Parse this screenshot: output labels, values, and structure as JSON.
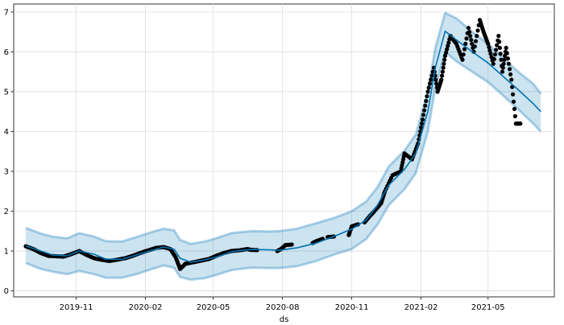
{
  "chart_data": {
    "type": "line",
    "title": "",
    "xlabel": "ds",
    "ylabel": "",
    "x_range": [
      "2019-08-10",
      "2021-07-28"
    ],
    "ylim": [
      -0.15,
      7.2
    ],
    "grid": true,
    "x_ticks": [
      {
        "date": "2019-11-01",
        "label": "2019-11"
      },
      {
        "date": "2020-02-01",
        "label": "2020-02"
      },
      {
        "date": "2020-05-01",
        "label": "2020-05"
      },
      {
        "date": "2020-08-01",
        "label": "2020-08"
      },
      {
        "date": "2020-11-01",
        "label": "2020-11"
      },
      {
        "date": "2021-02-01",
        "label": "2021-02"
      },
      {
        "date": "2021-05-01",
        "label": "2021-05"
      }
    ],
    "y_ticks": [
      0,
      1,
      2,
      3,
      4,
      5,
      6,
      7
    ],
    "colors": {
      "forecast_line": "#0072B2",
      "uncertainty_band": "#0072B2",
      "observed_points": "#000000",
      "grid": "#dddddd"
    },
    "series": [
      {
        "kind": "forecast",
        "x": [
          "2019-08-26",
          "2019-09-15",
          "2019-10-01",
          "2019-10-20",
          "2019-11-05",
          "2019-11-25",
          "2019-12-10",
          "2020-01-01",
          "2020-01-20",
          "2020-02-10",
          "2020-02-25",
          "2020-03-10",
          "2020-03-18",
          "2020-04-01",
          "2020-04-20",
          "2020-05-05",
          "2020-05-25",
          "2020-06-10",
          "2020-06-22",
          "2020-07-15",
          "2020-07-28",
          "2020-08-20",
          "2020-09-15",
          "2020-10-10",
          "2020-11-01",
          "2020-11-20",
          "2020-12-05",
          "2020-12-20",
          "2021-01-10",
          "2021-01-25",
          "2021-02-10",
          "2021-02-20",
          "2021-03-05",
          "2021-03-20",
          "2021-04-10",
          "2021-05-01",
          "2021-05-20",
          "2021-06-10",
          "2021-06-30",
          "2021-07-10"
        ],
        "yhat": [
          1.13,
          1.0,
          0.9,
          0.88,
          1.0,
          0.92,
          0.8,
          0.79,
          0.9,
          1.02,
          1.1,
          1.05,
          0.82,
          0.72,
          0.78,
          0.85,
          0.98,
          1.02,
          1.04,
          1.03,
          1.02,
          1.08,
          1.2,
          1.38,
          1.55,
          1.78,
          2.15,
          2.65,
          3.05,
          3.45,
          4.5,
          5.6,
          6.52,
          6.3,
          6.0,
          5.72,
          5.4,
          5.05,
          4.7,
          4.5
        ],
        "yhat_lower": [
          0.7,
          0.55,
          0.48,
          0.42,
          0.5,
          0.42,
          0.33,
          0.33,
          0.42,
          0.55,
          0.64,
          0.58,
          0.35,
          0.28,
          0.32,
          0.4,
          0.52,
          0.56,
          0.58,
          0.57,
          0.57,
          0.62,
          0.75,
          0.92,
          1.05,
          1.3,
          1.66,
          2.15,
          2.55,
          2.95,
          4.0,
          5.1,
          6.0,
          5.76,
          5.5,
          5.24,
          4.92,
          4.56,
          4.2,
          4.0
        ],
        "yhat_upper": [
          1.58,
          1.44,
          1.36,
          1.32,
          1.45,
          1.36,
          1.25,
          1.24,
          1.35,
          1.48,
          1.56,
          1.52,
          1.28,
          1.18,
          1.24,
          1.32,
          1.45,
          1.48,
          1.5,
          1.49,
          1.5,
          1.56,
          1.7,
          1.84,
          2.0,
          2.24,
          2.6,
          3.12,
          3.52,
          3.92,
          5.0,
          6.1,
          6.98,
          6.84,
          6.5,
          6.2,
          5.86,
          5.5,
          5.2,
          4.95
        ]
      },
      {
        "kind": "observed",
        "x": [
          "2019-08-26",
          "2019-09-05",
          "2019-09-15",
          "2019-09-25",
          "2019-10-05",
          "2019-10-15",
          "2019-10-25",
          "2019-11-05",
          "2019-11-15",
          "2019-11-25",
          "2019-12-05",
          "2019-12-15",
          "2019-12-25",
          "2020-01-05",
          "2020-01-15",
          "2020-01-25",
          "2020-02-05",
          "2020-02-15",
          "2020-02-25",
          "2020-03-05",
          "2020-03-12",
          "2020-03-18",
          "2020-03-25",
          "2020-04-05",
          "2020-04-15",
          "2020-04-25",
          "2020-05-05",
          "2020-05-15",
          "2020-05-25",
          "2020-06-05",
          "2020-06-15",
          "2020-06-20",
          "2020-07-25",
          "2020-07-30",
          "2020-08-05",
          "2020-09-10",
          "2020-09-15",
          "2020-09-30",
          "2020-10-28",
          "2020-11-01",
          "2020-11-18",
          "2020-11-25",
          "2020-12-01",
          "2020-12-10",
          "2020-12-15",
          "2020-12-25",
          "2021-01-05",
          "2021-01-10",
          "2021-01-20",
          "2021-01-28",
          "2021-02-03",
          "2021-02-10",
          "2021-02-18",
          "2021-02-23",
          "2021-02-28",
          "2021-03-05",
          "2021-03-12",
          "2021-03-20",
          "2021-03-28",
          "2021-04-05",
          "2021-04-12",
          "2021-04-20",
          "2021-04-25",
          "2021-05-01",
          "2021-05-08",
          "2021-05-15",
          "2021-05-20",
          "2021-05-25",
          "2021-06-01",
          "2021-06-07"
        ],
        "y": [
          1.12,
          1.05,
          0.95,
          0.88,
          0.87,
          0.86,
          0.92,
          1.0,
          0.9,
          0.82,
          0.78,
          0.75,
          0.78,
          0.82,
          0.88,
          0.95,
          1.02,
          1.08,
          1.1,
          1.05,
          0.85,
          0.55,
          0.68,
          0.72,
          0.76,
          0.8,
          0.88,
          0.95,
          1.0,
          1.02,
          1.05,
          1.03,
          1.0,
          1.05,
          1.15,
          1.2,
          1.25,
          1.35,
          1.4,
          1.62,
          1.72,
          1.88,
          2.0,
          2.2,
          2.5,
          2.9,
          3.0,
          3.45,
          3.3,
          3.7,
          4.3,
          5.0,
          5.6,
          5.0,
          5.3,
          5.9,
          6.4,
          6.2,
          5.8,
          6.6,
          6.0,
          6.8,
          6.5,
          6.2,
          5.7,
          6.4,
          5.5,
          6.1,
          5.3,
          4.2
        ]
      }
    ]
  }
}
